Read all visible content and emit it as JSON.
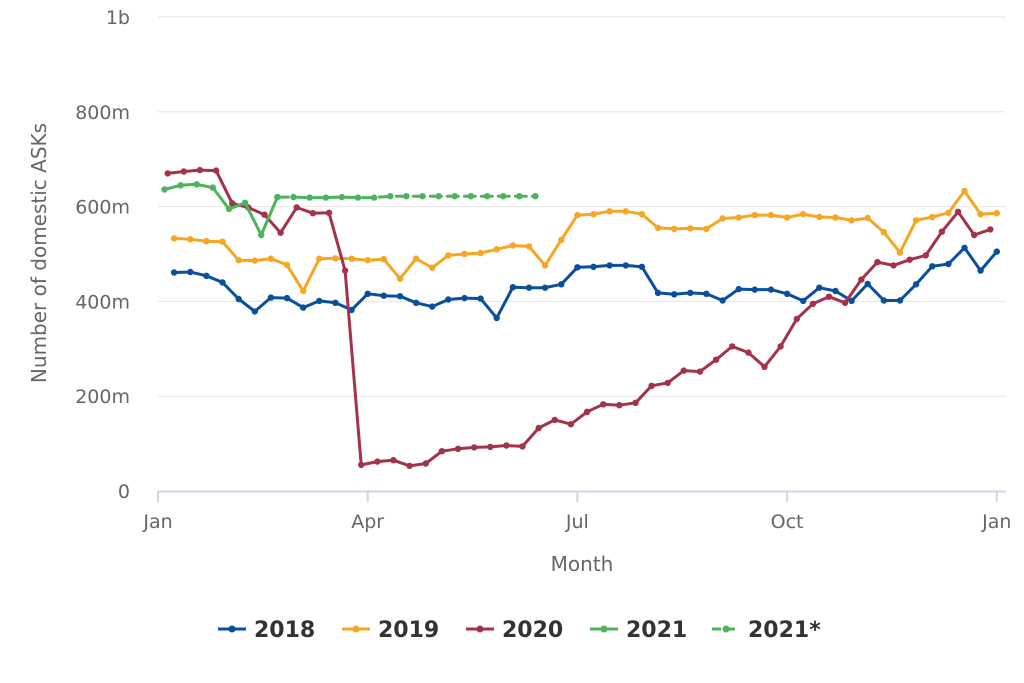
{
  "chart_data": {
    "type": "line",
    "xlabel": "Month",
    "ylabel": "Number of domestic ASKs",
    "y_ticks": [
      {
        "value": 0,
        "label": "0"
      },
      {
        "value": 200,
        "label": "200m"
      },
      {
        "value": 400,
        "label": "400m"
      },
      {
        "value": 600,
        "label": "600m"
      },
      {
        "value": 800,
        "label": "800m"
      },
      {
        "value": 1000,
        "label": "1b"
      }
    ],
    "x_ticks": [
      {
        "value": 0,
        "label": "Jan"
      },
      {
        "value": 13,
        "label": "Apr"
      },
      {
        "value": 26,
        "label": "Jul"
      },
      {
        "value": 39,
        "label": "Oct"
      },
      {
        "value": 52,
        "label": "Jan"
      }
    ],
    "x_unit": "week",
    "ylim": [
      0,
      1000
    ],
    "xlim": [
      0,
      52.2
    ],
    "grid": true,
    "legend_position": "bottom",
    "series": [
      {
        "name": "2018",
        "color": "#0a4f9c",
        "dashed": false,
        "x": [
          1,
          2,
          3,
          4,
          5,
          6,
          7,
          8,
          9,
          10,
          11,
          12,
          13,
          14,
          15,
          16,
          17,
          18,
          19,
          20,
          21,
          22,
          23,
          24,
          25,
          26,
          27,
          28,
          29,
          30,
          31,
          32,
          33,
          34,
          35,
          36,
          37,
          38,
          39,
          40,
          41,
          42,
          43,
          44,
          45,
          46,
          47,
          48,
          49,
          50,
          51,
          52
        ],
        "values": [
          461,
          462,
          454,
          440,
          405,
          379,
          408,
          407,
          387,
          401,
          397,
          382,
          416,
          412,
          411,
          397,
          389,
          404,
          407,
          406,
          365,
          430,
          429,
          429,
          436,
          472,
          473,
          476,
          476,
          473,
          418,
          415,
          418,
          416,
          402,
          426,
          425,
          425,
          416,
          401,
          429,
          422,
          401,
          437,
          402,
          402,
          436,
          474,
          479,
          513,
          465,
          505
        ]
      },
      {
        "name": "2019",
        "color": "#f5a623",
        "dashed": false,
        "x": [
          1,
          2,
          3,
          4,
          5,
          6,
          7,
          8,
          9,
          10,
          11,
          12,
          13,
          14,
          15,
          16,
          17,
          18,
          19,
          20,
          21,
          22,
          23,
          24,
          25,
          26,
          27,
          28,
          29,
          30,
          31,
          32,
          33,
          34,
          35,
          36,
          37,
          38,
          39,
          40,
          41,
          42,
          43,
          44,
          45,
          46,
          47,
          48,
          49,
          50,
          51,
          52
        ],
        "values": [
          533,
          531,
          527,
          526,
          487,
          486,
          490,
          477,
          422,
          490,
          491,
          490,
          487,
          489,
          448,
          490,
          471,
          497,
          500,
          502,
          510,
          518,
          516,
          476,
          530,
          582,
          584,
          590,
          590,
          584,
          555,
          553,
          554,
          553,
          575,
          577,
          582,
          582,
          577,
          584,
          578,
          577,
          571,
          576,
          546,
          503,
          571,
          578,
          587,
          633,
          584,
          586
        ]
      },
      {
        "name": "2020",
        "color": "#a3324a",
        "dashed": false,
        "x": [
          0.6,
          1.6,
          2.6,
          3.6,
          4.6,
          5.6,
          6.6,
          7.6,
          8.6,
          9.6,
          10.6,
          11.6,
          12.6,
          13.6,
          14.6,
          15.6,
          16.6,
          17.6,
          18.6,
          19.6,
          20.6,
          21.6,
          22.6,
          23.6,
          24.6,
          25.6,
          26.6,
          27.6,
          28.6,
          29.6,
          30.6,
          31.6,
          32.6,
          33.6,
          34.6,
          35.6,
          36.6,
          37.6,
          38.6,
          39.6,
          40.6,
          41.6,
          42.6,
          43.6,
          44.6,
          45.6,
          46.6,
          47.6,
          48.6,
          49.6,
          50.6,
          51.6
        ],
        "values": [
          670,
          674,
          677,
          676,
          607,
          598,
          583,
          545,
          598,
          586,
          587,
          465,
          55,
          62,
          65,
          53,
          58,
          84,
          89,
          92,
          93,
          96,
          94,
          133,
          150,
          141,
          167,
          183,
          181,
          186,
          222,
          228,
          254,
          252,
          277,
          305,
          292,
          262,
          305,
          363,
          395,
          410,
          397,
          446,
          483,
          476,
          488,
          497,
          547,
          589,
          540,
          552
        ]
      },
      {
        "name": "2021",
        "color": "#4db35e",
        "dashed": false,
        "x": [
          0.4,
          1.4,
          2.4,
          3.4,
          4.4,
          5.4,
          6.4,
          7.4
        ],
        "values": [
          636,
          645,
          647,
          640,
          595,
          608,
          540,
          620
        ]
      },
      {
        "name": "2021*",
        "color": "#4db35e",
        "dashed": true,
        "x": [
          7.4,
          8.4,
          9.4,
          10.4,
          11.4,
          12.4,
          13.4,
          14.4,
          15.4,
          16.4,
          17.4,
          18.4,
          19.4,
          20.4,
          21.4,
          22.4,
          23.4
        ],
        "values": [
          620,
          620,
          619,
          619,
          620,
          619,
          619,
          622,
          622,
          622,
          622,
          622,
          622,
          622,
          622,
          622,
          622
        ]
      }
    ]
  }
}
